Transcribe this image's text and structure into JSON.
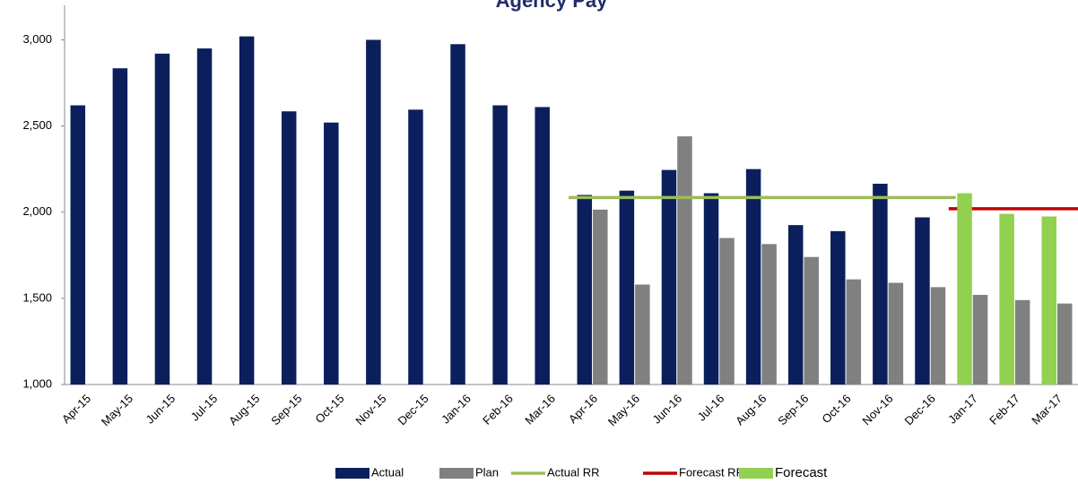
{
  "chart_data": {
    "type": "bar",
    "title": "Agency Pay",
    "categories": [
      "Apr-15",
      "May-15",
      "Jun-15",
      "Jul-15",
      "Aug-15",
      "Sep-15",
      "Oct-15",
      "Nov-15",
      "Dec-15",
      "Jan-16",
      "Feb-16",
      "Mar-16",
      "Apr-16",
      "May-16",
      "Jun-16",
      "Jul-16",
      "Aug-16",
      "Sep-16",
      "Oct-16",
      "Nov-16",
      "Dec-16",
      "Jan-17",
      "Feb-17",
      "Mar-17"
    ],
    "series": [
      {
        "name": "Actual",
        "type": "bar",
        "slot": 0,
        "color": "#0b1f5c",
        "values": [
          2620,
          2835,
          2920,
          2950,
          3020,
          2585,
          2520,
          3000,
          2595,
          2975,
          2620,
          2610,
          2100,
          2125,
          2245,
          2110,
          2250,
          1925,
          1890,
          2165,
          1970,
          null,
          null,
          null
        ]
      },
      {
        "name": "Plan",
        "type": "bar",
        "slot": 1,
        "color": "#808080",
        "values": [
          null,
          null,
          null,
          null,
          null,
          null,
          null,
          null,
          null,
          null,
          null,
          null,
          2015,
          1580,
          2440,
          1850,
          1815,
          1740,
          1610,
          1590,
          1565,
          1520,
          1490,
          1470
        ]
      },
      {
        "name": "Actual RR",
        "type": "line",
        "color": "#9bbb59",
        "values": [
          null,
          null,
          null,
          null,
          null,
          null,
          null,
          null,
          null,
          null,
          null,
          null,
          2085,
          2085,
          2085,
          2085,
          2085,
          2085,
          2085,
          2085,
          2085,
          null,
          null,
          null
        ]
      },
      {
        "name": "Forecast RR",
        "type": "line",
        "color": "#c00000",
        "values": [
          null,
          null,
          null,
          null,
          null,
          null,
          null,
          null,
          null,
          null,
          null,
          null,
          null,
          null,
          null,
          null,
          null,
          null,
          null,
          null,
          null,
          2020,
          2020,
          2020
        ]
      },
      {
        "name": "Forecast",
        "type": "bar",
        "slot": 0,
        "color": "#92d050",
        "values": [
          null,
          null,
          null,
          null,
          null,
          null,
          null,
          null,
          null,
          null,
          null,
          null,
          null,
          null,
          null,
          null,
          null,
          null,
          null,
          null,
          null,
          2110,
          1990,
          1975
        ]
      }
    ],
    "ylim": [
      1000,
      3200
    ],
    "yticks": [
      {
        "value": 1000,
        "label": "1,000"
      },
      {
        "value": 1500,
        "label": "1,500"
      },
      {
        "value": 2000,
        "label": "2,000"
      },
      {
        "value": 2500,
        "label": "2,500"
      },
      {
        "value": 3000,
        "label": "3,000"
      }
    ]
  }
}
